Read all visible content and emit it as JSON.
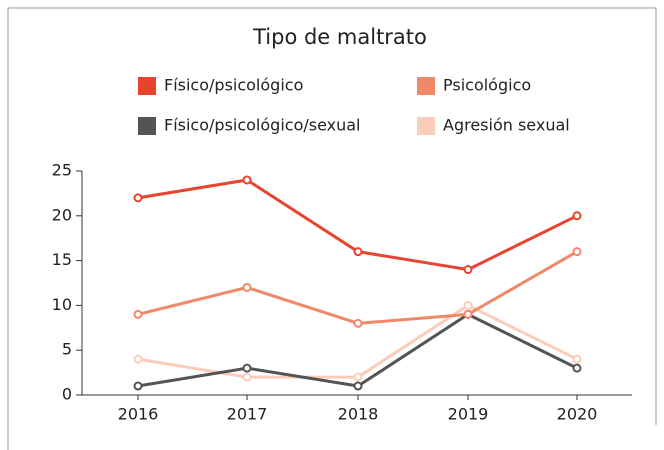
{
  "chart_data": {
    "type": "line",
    "title": "Tipo de maltrato",
    "categories": [
      "2016",
      "2017",
      "2018",
      "2019",
      "2020"
    ],
    "series": [
      {
        "name": "Físico/psicológico",
        "color": "#e8432e",
        "values": [
          22,
          24,
          16,
          14,
          20
        ]
      },
      {
        "name": "Psicológico",
        "color": "#f0896a",
        "values": [
          9,
          12,
          8,
          9,
          16
        ]
      },
      {
        "name": "Físico/psicológico/sexual",
        "color": "#545454",
        "values": [
          1,
          3,
          1,
          9,
          3
        ]
      },
      {
        "name": "Agresión sexual",
        "color": "#fbcdb8",
        "values": [
          4,
          2,
          2,
          10,
          4
        ]
      }
    ],
    "ylim": [
      0,
      25
    ],
    "yticks": [
      0,
      5,
      10,
      15,
      20,
      25
    ]
  }
}
